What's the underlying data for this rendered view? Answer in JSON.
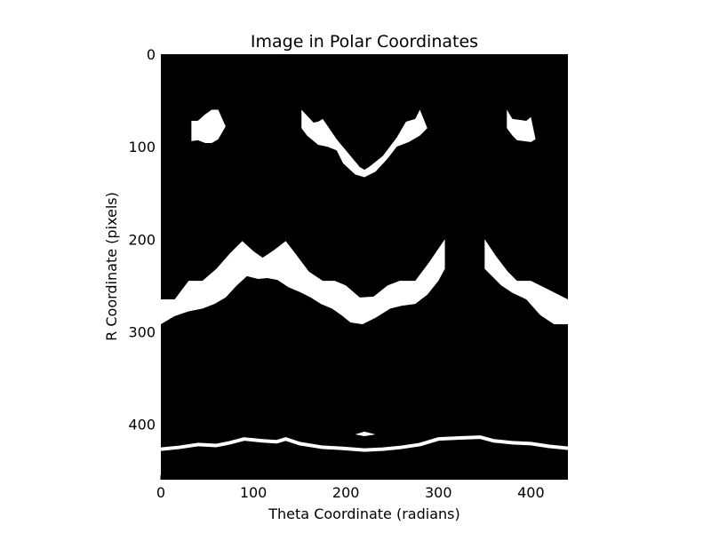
{
  "chart_data": {
    "type": "heatmap",
    "title": "Image in Polar Coordinates",
    "xlabel": "Theta Coordinate (radians)",
    "ylabel": "R Coordinate (pixels)",
    "xlim": [
      0,
      440
    ],
    "ylim": [
      460,
      0
    ],
    "x_ticks": [
      0,
      100,
      200,
      300,
      400
    ],
    "y_ticks": [
      0,
      100,
      200,
      300,
      400
    ],
    "colormap": "gray",
    "background_color": "#000000",
    "foreground_color": "#ffffff",
    "grid": false,
    "bright_bands": [
      {
        "kind": "filled",
        "top": [
          [
            33,
            72
          ],
          [
            40,
            72
          ],
          [
            48,
            65
          ],
          [
            55,
            60
          ],
          [
            62,
            60
          ],
          [
            70,
            78
          ]
        ],
        "bottom": [
          [
            70,
            78
          ],
          [
            62,
            92
          ],
          [
            55,
            96
          ],
          [
            48,
            96
          ],
          [
            40,
            93
          ],
          [
            33,
            94
          ]
        ]
      },
      {
        "kind": "filled",
        "top": [
          [
            152,
            60
          ],
          [
            165,
            74
          ],
          [
            170,
            73
          ],
          [
            175,
            70
          ],
          [
            190,
            92
          ],
          [
            205,
            110
          ],
          [
            215,
            122
          ],
          [
            220,
            125
          ],
          [
            225,
            122
          ],
          [
            240,
            110
          ],
          [
            255,
            90
          ],
          [
            265,
            73
          ],
          [
            275,
            70
          ],
          [
            280,
            60
          ],
          [
            288,
            80
          ]
        ],
        "bottom": [
          [
            288,
            80
          ],
          [
            280,
            88
          ],
          [
            268,
            95
          ],
          [
            255,
            100
          ],
          [
            245,
            113
          ],
          [
            232,
            127
          ],
          [
            220,
            133
          ],
          [
            210,
            130
          ],
          [
            197,
            118
          ],
          [
            190,
            104
          ],
          [
            180,
            100
          ],
          [
            170,
            98
          ],
          [
            158,
            88
          ],
          [
            152,
            80
          ]
        ]
      },
      {
        "kind": "filled",
        "top": [
          [
            374,
            60
          ],
          [
            380,
            70
          ],
          [
            395,
            72
          ],
          [
            400,
            68
          ],
          [
            405,
            92
          ]
        ],
        "bottom": [
          [
            405,
            92
          ],
          [
            400,
            95
          ],
          [
            385,
            93
          ],
          [
            380,
            88
          ],
          [
            374,
            80
          ]
        ]
      },
      {
        "kind": "filled",
        "top": [
          [
            0,
            265
          ],
          [
            15,
            265
          ],
          [
            30,
            245
          ],
          [
            45,
            245
          ],
          [
            60,
            232
          ],
          [
            75,
            215
          ],
          [
            88,
            202
          ],
          [
            100,
            213
          ],
          [
            110,
            220
          ],
          [
            122,
            212
          ],
          [
            135,
            202
          ],
          [
            145,
            215
          ],
          [
            160,
            235
          ],
          [
            175,
            245
          ],
          [
            188,
            245
          ],
          [
            200,
            250
          ],
          [
            215,
            263
          ],
          [
            230,
            262
          ],
          [
            245,
            250
          ],
          [
            258,
            245
          ],
          [
            275,
            245
          ],
          [
            290,
            225
          ],
          [
            307,
            200
          ],
          [
            307,
            232
          ]
        ],
        "bottom": [
          [
            307,
            232
          ],
          [
            300,
            245
          ],
          [
            288,
            260
          ],
          [
            275,
            270
          ],
          [
            260,
            272
          ],
          [
            248,
            275
          ],
          [
            232,
            285
          ],
          [
            218,
            292
          ],
          [
            205,
            290
          ],
          [
            195,
            282
          ],
          [
            185,
            275
          ],
          [
            173,
            270
          ],
          [
            162,
            263
          ],
          [
            150,
            257
          ],
          [
            138,
            252
          ],
          [
            126,
            244
          ],
          [
            115,
            242
          ],
          [
            105,
            243
          ],
          [
            93,
            240
          ],
          [
            82,
            250
          ],
          [
            70,
            263
          ],
          [
            58,
            270
          ],
          [
            45,
            275
          ],
          [
            30,
            278
          ],
          [
            15,
            283
          ],
          [
            0,
            292
          ]
        ]
      },
      {
        "kind": "filled",
        "top": [
          [
            350,
            200
          ],
          [
            362,
            218
          ],
          [
            375,
            235
          ],
          [
            385,
            245
          ],
          [
            400,
            245
          ],
          [
            420,
            255
          ],
          [
            440,
            265
          ]
        ],
        "bottom": [
          [
            440,
            292
          ],
          [
            425,
            292
          ],
          [
            410,
            282
          ],
          [
            395,
            265
          ],
          [
            380,
            258
          ],
          [
            368,
            250
          ],
          [
            358,
            240
          ],
          [
            350,
            232
          ]
        ]
      },
      {
        "kind": "stroke",
        "points": [
          [
            0,
            427
          ],
          [
            20,
            425
          ],
          [
            40,
            422
          ],
          [
            60,
            423
          ],
          [
            75,
            420
          ],
          [
            90,
            416
          ],
          [
            110,
            418
          ],
          [
            125,
            419
          ],
          [
            135,
            416
          ],
          [
            150,
            421
          ],
          [
            175,
            425
          ],
          [
            195,
            426
          ],
          [
            220,
            428
          ],
          [
            240,
            427
          ],
          [
            260,
            425
          ],
          [
            280,
            422
          ],
          [
            300,
            416
          ],
          [
            320,
            415
          ],
          [
            345,
            414
          ],
          [
            360,
            418
          ],
          [
            380,
            420
          ],
          [
            400,
            421
          ],
          [
            420,
            424
          ],
          [
            440,
            426
          ]
        ]
      },
      {
        "kind": "filled",
        "top": [
          [
            210,
            411
          ],
          [
            220,
            408
          ],
          [
            232,
            411
          ]
        ],
        "bottom": [
          [
            232,
            411
          ],
          [
            220,
            413
          ],
          [
            210,
            411
          ]
        ]
      }
    ]
  }
}
